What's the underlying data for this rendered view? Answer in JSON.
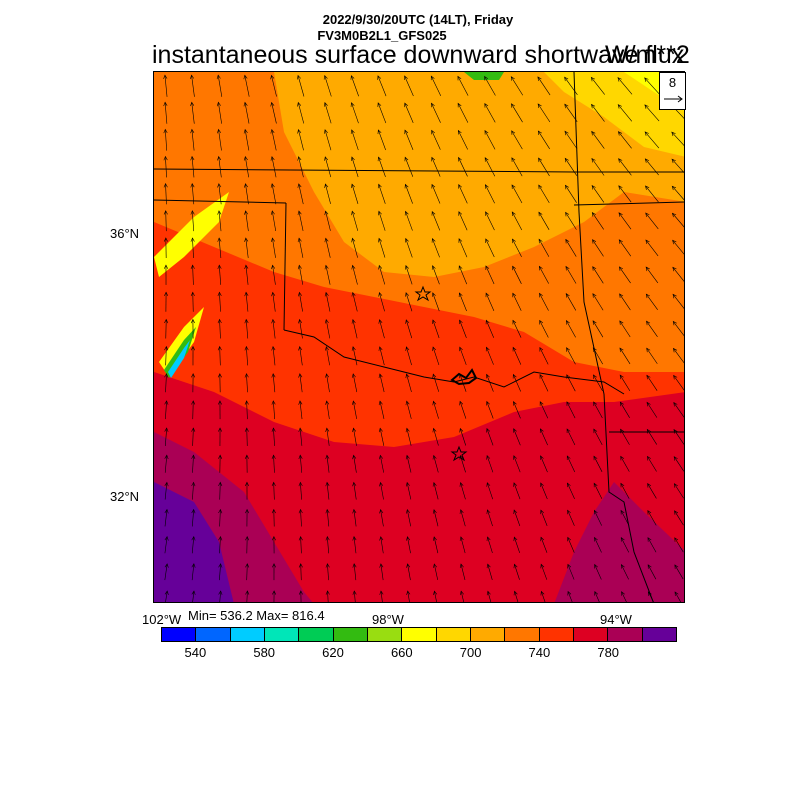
{
  "header": {
    "line1": "2022/9/30/20UTC (14LT), Friday",
    "line2": "FV3M0B2L1_GFS025"
  },
  "title": "instantaneous surface downward shortwave flux",
  "units": "W/m**2",
  "reference_vector": {
    "label": "8"
  },
  "axes": {
    "y_labels": [
      "36°N",
      "32°N"
    ],
    "x_labels": [
      "102°W",
      "98°W",
      "94°W"
    ]
  },
  "stats": {
    "text": "Min= 536.2 Max= 816.4",
    "min": 536.2,
    "max": 816.4
  },
  "colorbar": {
    "colors": [
      "#0000ff",
      "#0066ff",
      "#00ccff",
      "#00e6b8",
      "#00cc55",
      "#33bb11",
      "#99dd11",
      "#ffff00",
      "#ffd700",
      "#ffaa00",
      "#ff7700",
      "#ff3300",
      "#dd0022",
      "#aa0055",
      "#660099"
    ],
    "labels": [
      "540",
      "580",
      "620",
      "660",
      "700",
      "740",
      "780"
    ]
  },
  "chart_data": {
    "type": "heatmap",
    "title": "instantaneous surface downward shortwave flux",
    "units": "W/m**2",
    "valid_time": "2022/9/30/20UTC (14LT), Friday",
    "model": "FV3M0B2L1_GFS025",
    "x_ticks": [
      "102°W",
      "98°W",
      "94°W"
    ],
    "y_ticks": [
      "36°N",
      "32°N"
    ],
    "min": 536.2,
    "max": 816.4,
    "colorbar_levels": [
      540,
      580,
      620,
      660,
      700,
      740,
      780
    ],
    "grid": false,
    "overlay": "wind vectors, reference vector 8"
  }
}
